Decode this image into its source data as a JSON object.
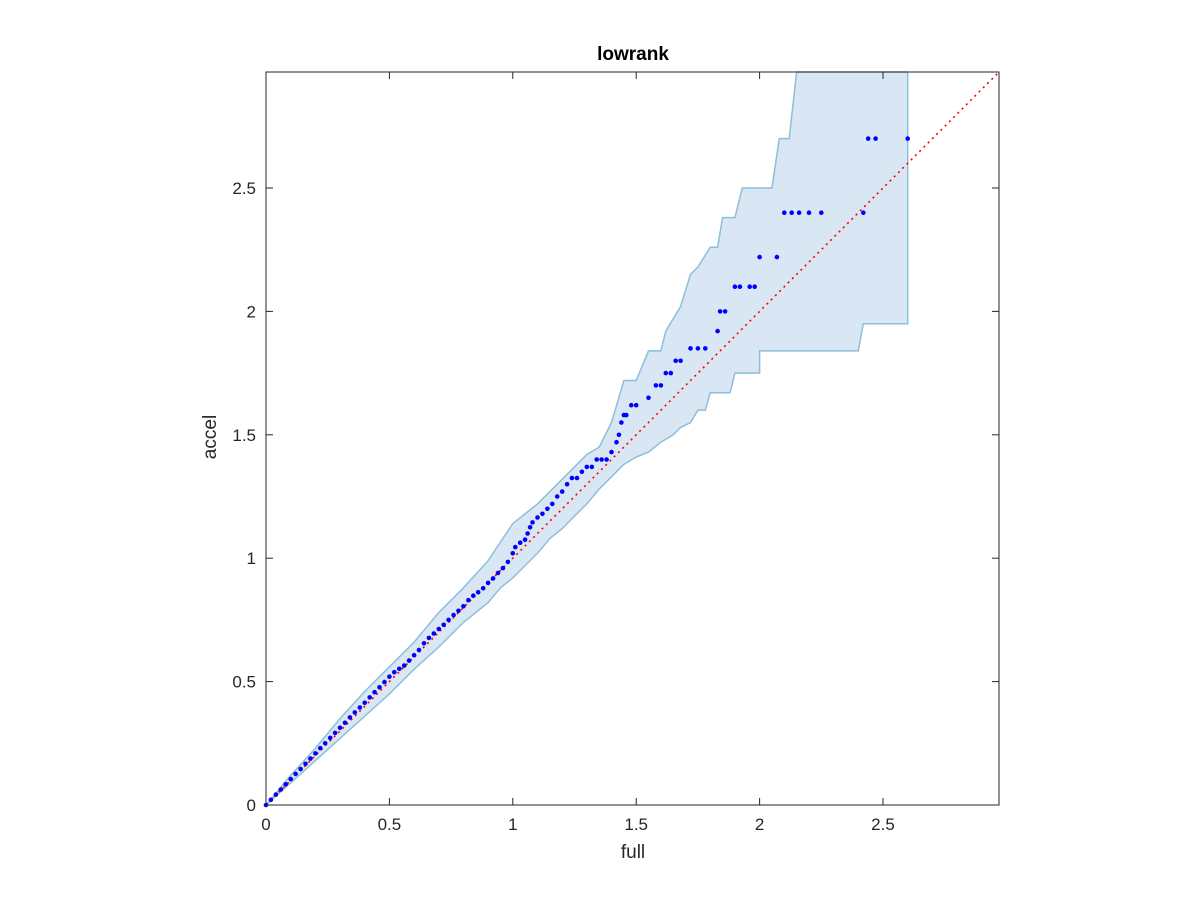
{
  "chart_data": {
    "type": "scatter",
    "title": "lowrank",
    "xlabel": "full",
    "ylabel": "accel",
    "xlim": [
      0,
      2.97
    ],
    "ylim": [
      0,
      2.97
    ],
    "xticks": [
      0,
      0.5,
      1,
      1.5,
      2,
      2.5
    ],
    "xtick_labels": [
      "0",
      "0.5",
      "1",
      "1.5",
      "2",
      "2.5"
    ],
    "yticks": [
      0,
      0.5,
      1,
      1.5,
      2,
      2.5
    ],
    "ytick_labels": [
      "0",
      "0.5",
      "1",
      "1.5",
      "2",
      "2.5"
    ],
    "grid": false,
    "colors": {
      "points": "#0000ff",
      "diagonal": "#ff0000",
      "band_fill": "#d8e7f3",
      "band_edge": "#8dbedb",
      "axes": "#262626"
    },
    "reference_line": {
      "style": "dotted",
      "from": [
        0,
        0
      ],
      "to": [
        2.97,
        2.97
      ]
    },
    "band": {
      "upper": [
        [
          0,
          0
        ],
        [
          0.1,
          0.12
        ],
        [
          0.2,
          0.23
        ],
        [
          0.3,
          0.35
        ],
        [
          0.4,
          0.46
        ],
        [
          0.5,
          0.56
        ],
        [
          0.6,
          0.66
        ],
        [
          0.7,
          0.78
        ],
        [
          0.8,
          0.88
        ],
        [
          0.9,
          0.99
        ],
        [
          1.0,
          1.14
        ],
        [
          1.1,
          1.22
        ],
        [
          1.15,
          1.27
        ],
        [
          1.2,
          1.32
        ],
        [
          1.25,
          1.37
        ],
        [
          1.3,
          1.42
        ],
        [
          1.35,
          1.45
        ],
        [
          1.4,
          1.55
        ],
        [
          1.45,
          1.72
        ],
        [
          1.5,
          1.72
        ],
        [
          1.55,
          1.84
        ],
        [
          1.6,
          1.84
        ],
        [
          1.62,
          1.92
        ],
        [
          1.68,
          2.02
        ],
        [
          1.72,
          2.15
        ],
        [
          1.75,
          2.18
        ],
        [
          1.8,
          2.26
        ],
        [
          1.83,
          2.26
        ],
        [
          1.85,
          2.38
        ],
        [
          1.9,
          2.38
        ],
        [
          1.93,
          2.5
        ],
        [
          2.05,
          2.5
        ],
        [
          2.08,
          2.7
        ],
        [
          2.12,
          2.7
        ],
        [
          2.15,
          2.97
        ],
        [
          2.6,
          2.97
        ]
      ],
      "lower": [
        [
          2.6,
          1.95
        ],
        [
          2.42,
          1.95
        ],
        [
          2.4,
          1.84
        ],
        [
          2.0,
          1.84
        ],
        [
          2.0,
          1.75
        ],
        [
          1.9,
          1.75
        ],
        [
          1.88,
          1.67
        ],
        [
          1.8,
          1.67
        ],
        [
          1.78,
          1.6
        ],
        [
          1.75,
          1.6
        ],
        [
          1.72,
          1.55
        ],
        [
          1.68,
          1.53
        ],
        [
          1.65,
          1.5
        ],
        [
          1.6,
          1.47
        ],
        [
          1.55,
          1.43
        ],
        [
          1.5,
          1.41
        ],
        [
          1.45,
          1.38
        ],
        [
          1.4,
          1.33
        ],
        [
          1.35,
          1.28
        ],
        [
          1.3,
          1.22
        ],
        [
          1.25,
          1.17
        ],
        [
          1.2,
          1.12
        ],
        [
          1.15,
          1.08
        ],
        [
          1.1,
          1.02
        ],
        [
          1.05,
          0.97
        ],
        [
          1.0,
          0.92
        ],
        [
          0.95,
          0.88
        ],
        [
          0.9,
          0.82
        ],
        [
          0.8,
          0.74
        ],
        [
          0.7,
          0.64
        ],
        [
          0.6,
          0.55
        ],
        [
          0.5,
          0.45
        ],
        [
          0.4,
          0.36
        ],
        [
          0.3,
          0.27
        ],
        [
          0.2,
          0.18
        ],
        [
          0.1,
          0.09
        ],
        [
          0,
          0
        ]
      ]
    },
    "series": [
      {
        "values": [
          [
            0,
            0
          ],
          [
            0.02,
            0.021
          ],
          [
            0.04,
            0.042
          ],
          [
            0.06,
            0.063
          ],
          [
            0.08,
            0.084
          ],
          [
            0.1,
            0.105
          ],
          [
            0.12,
            0.126
          ],
          [
            0.14,
            0.146
          ],
          [
            0.16,
            0.167
          ],
          [
            0.18,
            0.188
          ],
          [
            0.2,
            0.209
          ],
          [
            0.22,
            0.23
          ],
          [
            0.24,
            0.25
          ],
          [
            0.26,
            0.272
          ],
          [
            0.28,
            0.292
          ],
          [
            0.3,
            0.313
          ],
          [
            0.32,
            0.333
          ],
          [
            0.34,
            0.355
          ],
          [
            0.36,
            0.375
          ],
          [
            0.38,
            0.395
          ],
          [
            0.4,
            0.414
          ],
          [
            0.42,
            0.436
          ],
          [
            0.44,
            0.457
          ],
          [
            0.46,
            0.477
          ],
          [
            0.48,
            0.498
          ],
          [
            0.5,
            0.52
          ],
          [
            0.52,
            0.538
          ],
          [
            0.54,
            0.552
          ],
          [
            0.56,
            0.565
          ],
          [
            0.58,
            0.585
          ],
          [
            0.6,
            0.607
          ],
          [
            0.62,
            0.628
          ],
          [
            0.64,
            0.655
          ],
          [
            0.66,
            0.677
          ],
          [
            0.68,
            0.695
          ],
          [
            0.7,
            0.713
          ],
          [
            0.72,
            0.73
          ],
          [
            0.74,
            0.75
          ],
          [
            0.76,
            0.77
          ],
          [
            0.78,
            0.787
          ],
          [
            0.8,
            0.805
          ],
          [
            0.82,
            0.83
          ],
          [
            0.84,
            0.848
          ],
          [
            0.86,
            0.862
          ],
          [
            0.88,
            0.878
          ],
          [
            0.9,
            0.9
          ],
          [
            0.92,
            0.918
          ],
          [
            0.94,
            0.94
          ],
          [
            0.96,
            0.96
          ],
          [
            0.98,
            0.985
          ],
          [
            1.0,
            1.02
          ],
          [
            1.01,
            1.045
          ],
          [
            1.03,
            1.063
          ],
          [
            1.05,
            1.075
          ],
          [
            1.06,
            1.1
          ],
          [
            1.07,
            1.125
          ],
          [
            1.08,
            1.145
          ],
          [
            1.1,
            1.165
          ],
          [
            1.12,
            1.18
          ],
          [
            1.14,
            1.2
          ],
          [
            1.16,
            1.22
          ],
          [
            1.18,
            1.25
          ],
          [
            1.2,
            1.27
          ],
          [
            1.22,
            1.3
          ],
          [
            1.24,
            1.325
          ],
          [
            1.26,
            1.325
          ],
          [
            1.28,
            1.35
          ],
          [
            1.3,
            1.37
          ],
          [
            1.32,
            1.37
          ],
          [
            1.34,
            1.4
          ],
          [
            1.36,
            1.4
          ],
          [
            1.38,
            1.4
          ],
          [
            1.4,
            1.43
          ],
          [
            1.42,
            1.47
          ],
          [
            1.43,
            1.5
          ],
          [
            1.44,
            1.55
          ],
          [
            1.45,
            1.58
          ],
          [
            1.46,
            1.58
          ],
          [
            1.48,
            1.62
          ],
          [
            1.5,
            1.62
          ],
          [
            1.55,
            1.65
          ],
          [
            1.58,
            1.7
          ],
          [
            1.6,
            1.7
          ],
          [
            1.62,
            1.75
          ],
          [
            1.64,
            1.75
          ],
          [
            1.66,
            1.8
          ],
          [
            1.68,
            1.8
          ],
          [
            1.72,
            1.85
          ],
          [
            1.75,
            1.85
          ],
          [
            1.78,
            1.85
          ],
          [
            1.83,
            1.92
          ],
          [
            1.84,
            2.0
          ],
          [
            1.86,
            2.0
          ],
          [
            1.9,
            2.1
          ],
          [
            1.92,
            2.1
          ],
          [
            1.96,
            2.1
          ],
          [
            1.98,
            2.1
          ],
          [
            2.0,
            2.22
          ],
          [
            2.07,
            2.22
          ],
          [
            2.1,
            2.4
          ],
          [
            2.13,
            2.4
          ],
          [
            2.16,
            2.4
          ],
          [
            2.2,
            2.4
          ],
          [
            2.25,
            2.4
          ],
          [
            2.42,
            2.4
          ],
          [
            2.44,
            2.7
          ],
          [
            2.47,
            2.7
          ],
          [
            2.6,
            2.7
          ]
        ]
      }
    ]
  }
}
